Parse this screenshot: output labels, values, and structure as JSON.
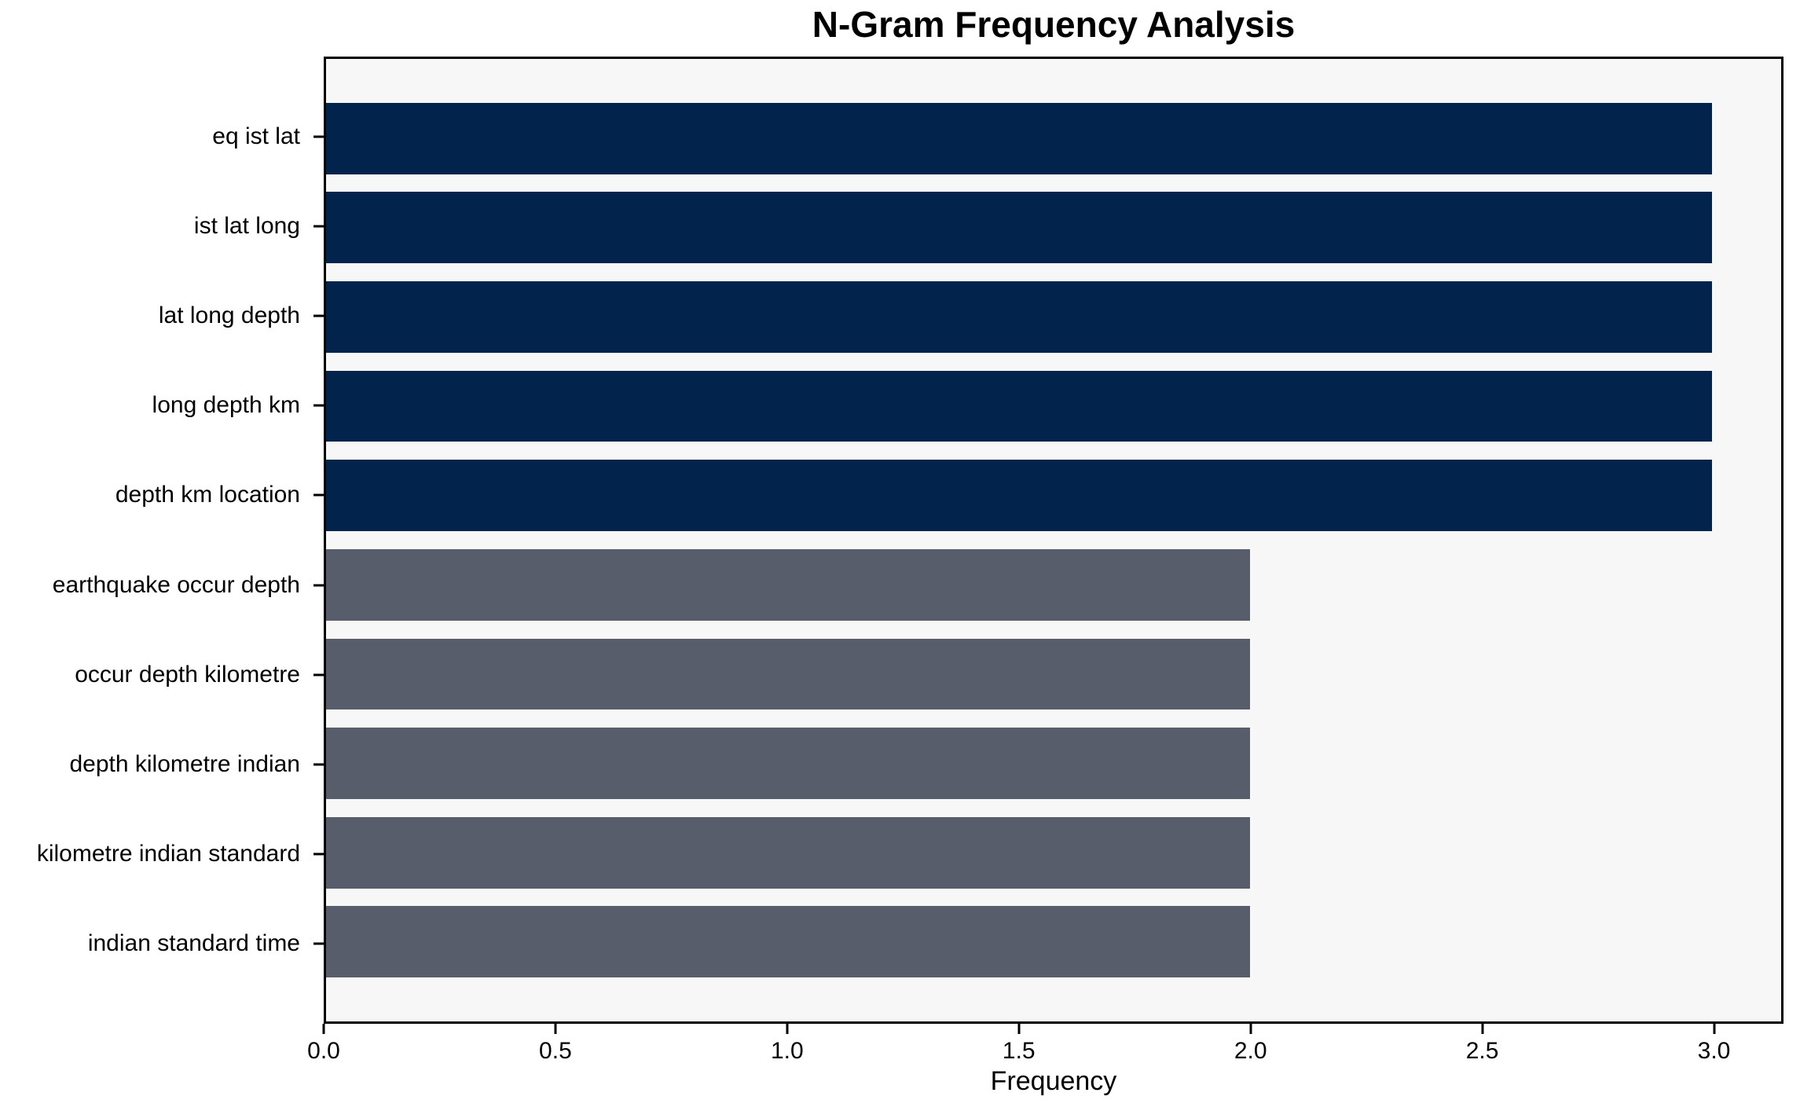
{
  "chart_data": {
    "type": "bar",
    "orientation": "horizontal",
    "title": "N-Gram Frequency Analysis",
    "xlabel": "Frequency",
    "ylabel": "",
    "categories": [
      "eq ist lat",
      "ist lat long",
      "lat long depth",
      "long depth km",
      "depth km location",
      "earthquake occur depth",
      "occur depth kilometre",
      "depth kilometre indian",
      "kilometre indian standard",
      "indian standard time"
    ],
    "values": [
      3,
      3,
      3,
      3,
      3,
      2,
      2,
      2,
      2,
      2
    ],
    "bar_colors": [
      "#02234c",
      "#02234c",
      "#02234c",
      "#02234c",
      "#02234c",
      "#575d6b",
      "#575d6b",
      "#575d6b",
      "#575d6b",
      "#575d6b"
    ],
    "xlim": [
      0,
      3.15
    ],
    "xticks": [
      0.0,
      0.5,
      1.0,
      1.5,
      2.0,
      2.5,
      3.0
    ],
    "xtick_labels": [
      "0.0",
      "0.5",
      "1.0",
      "1.5",
      "2.0",
      "2.5",
      "3.0"
    ],
    "bar_height_fraction": 0.8,
    "grid": false,
    "legend_position": "none",
    "plot_background": "#f7f7f7",
    "figure_background": "#ffffff",
    "spine_color": "#000000",
    "text_color": "#000000"
  }
}
